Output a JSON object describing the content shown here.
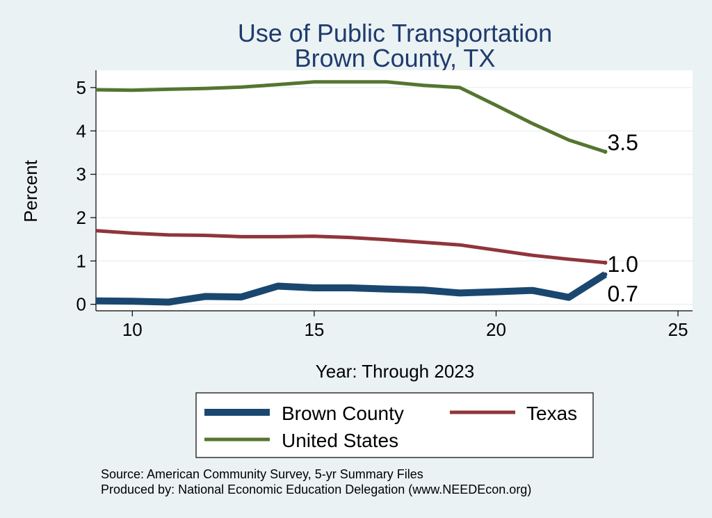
{
  "chart_data": {
    "type": "line",
    "title": "Use of Public Transportation",
    "subtitle": "Brown County, TX",
    "xlabel": "Year: Through 2023",
    "ylabel": "Percent",
    "xlim": [
      9,
      25.4
    ],
    "ylim": [
      -0.15,
      5.4
    ],
    "xticks": [
      10,
      15,
      20,
      25
    ],
    "yticks": [
      0,
      1,
      2,
      3,
      4,
      5
    ],
    "grid": true,
    "legend_position": "bottom",
    "series": [
      {
        "name": "Brown County",
        "color": "#1a476f",
        "x": [
          9,
          10,
          11,
          12,
          13,
          14,
          15,
          16,
          17,
          18,
          19,
          20,
          21,
          22,
          23
        ],
        "values": [
          0.08,
          0.07,
          0.05,
          0.18,
          0.17,
          0.42,
          0.38,
          0.38,
          0.35,
          0.33,
          0.26,
          0.29,
          0.32,
          0.16,
          0.69
        ],
        "end_label": "0.7"
      },
      {
        "name": "Texas",
        "color": "#90353b",
        "x": [
          9,
          10,
          11,
          12,
          13,
          14,
          15,
          16,
          17,
          18,
          19,
          20,
          21,
          22,
          23
        ],
        "values": [
          1.7,
          1.64,
          1.6,
          1.59,
          1.56,
          1.56,
          1.57,
          1.54,
          1.49,
          1.43,
          1.37,
          1.25,
          1.13,
          1.04,
          0.96
        ],
        "end_label": "1.0"
      },
      {
        "name": "United States",
        "color": "#55752f",
        "x": [
          9,
          10,
          11,
          12,
          13,
          14,
          15,
          16,
          17,
          18,
          19,
          20,
          21,
          22,
          23
        ],
        "values": [
          4.95,
          4.94,
          4.96,
          4.98,
          5.01,
          5.07,
          5.13,
          5.13,
          5.13,
          5.05,
          5.0,
          4.59,
          4.17,
          3.79,
          3.52
        ],
        "end_label": "3.5"
      }
    ],
    "notes": [
      "Source: American Community Survey, 5-yr Summary Files",
      "Produced by: National Economic Education Delegation (www.NEEDEcon.org)"
    ]
  }
}
